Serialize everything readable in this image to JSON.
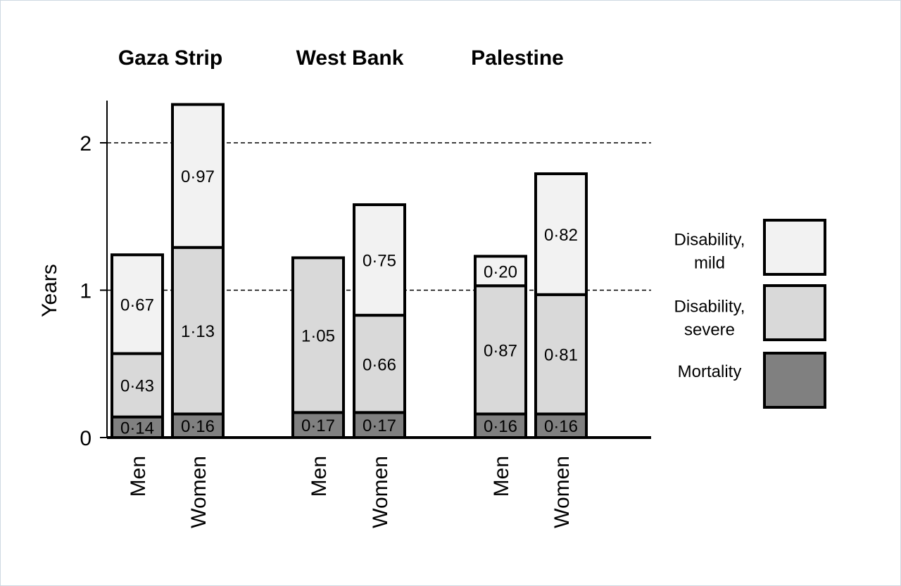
{
  "chart_data": {
    "type": "bar",
    "stacked": true,
    "ylabel": "Years",
    "ylim": [
      0,
      2.25
    ],
    "yticks": [
      0,
      1,
      2
    ],
    "gridlines": "dashed at 1 and 2",
    "groups": [
      {
        "title": "Gaza Strip",
        "categories": [
          "Men",
          "Women"
        ]
      },
      {
        "title": "West Bank",
        "categories": [
          "Men",
          "Women"
        ]
      },
      {
        "title": "Palestine",
        "categories": [
          "Men",
          "Women"
        ]
      }
    ],
    "series": [
      {
        "name": "Mortality",
        "color": "#808080",
        "values": [
          0.14,
          0.16,
          0.17,
          0.17,
          0.16,
          0.16
        ],
        "labels": [
          "0·14",
          "0·16",
          "0·17",
          "0·17",
          "0·16",
          "0·16"
        ]
      },
      {
        "name": "Disability, severe",
        "color": "#d9d9d9",
        "values": [
          0.43,
          1.13,
          1.05,
          0.66,
          0.87,
          0.81
        ],
        "labels": [
          "0·43",
          "1·13",
          "1·05",
          "0·66",
          "0·87",
          "0·81"
        ]
      },
      {
        "name": "Disability, mild",
        "color": "#f2f2f2",
        "values": [
          0.67,
          0.97,
          0,
          0.75,
          0.2,
          0.82
        ],
        "labels": [
          "0·67",
          "0·97",
          "",
          "0·75",
          "0·20",
          "0·82"
        ]
      }
    ],
    "legend": {
      "placement": "right",
      "entries": [
        {
          "lines": [
            "Disability,",
            "mild"
          ],
          "color": "#f2f2f2"
        },
        {
          "lines": [
            "Disability,",
            "severe"
          ],
          "color": "#d9d9d9"
        },
        {
          "lines": [
            "Mortality"
          ],
          "color": "#808080"
        }
      ]
    }
  }
}
